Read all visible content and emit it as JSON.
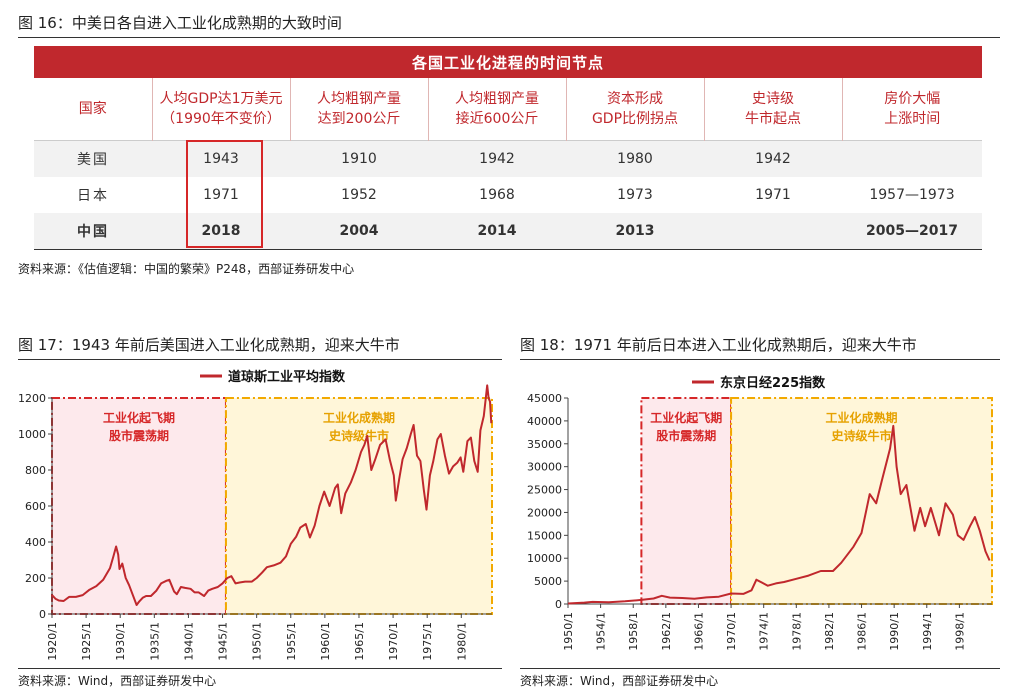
{
  "fig16": {
    "title": "图 16：中美日各自进入工业化成熟期的大致时间",
    "table_title": "各国工业化进程的时间节点",
    "headers": [
      "国家",
      "人均GDP达1万美元\n（1990年不变价）",
      "人均粗钢产量\n达到200公斤",
      "人均粗钢产量\n接近600公斤",
      "资本形成\nGDP比例拐点",
      "史诗级\n牛市起点",
      "房价大幅\n上涨时间"
    ],
    "rows": [
      [
        "美国",
        "1943",
        "1910",
        "1942",
        "1980",
        "1942",
        ""
      ],
      [
        "日本",
        "1971",
        "1952",
        "1968",
        "1973",
        "1971",
        "1957—1973"
      ],
      [
        "中国",
        "2018",
        "2004",
        "2014",
        "2013",
        "",
        "2005—2017"
      ]
    ],
    "source": "资料来源：《估值逻辑：中国的繁荣》P248，西部证券研发中心"
  },
  "fig17": {
    "title": "图 17：1943 年前后美国进入工业化成熟期，迎来大牛市",
    "source": "资料来源：Wind，西部证券研发中心"
  },
  "fig18": {
    "title": "图 18：1971 年前后日本进入工业化成熟期后，迎来大牛市",
    "source": "资料来源：Wind，西部证券研发中心"
  },
  "chart_data": [
    {
      "type": "line",
      "title": "道琼斯工业平均指数",
      "legend": "道琼斯工业平均指数",
      "xlabel": "",
      "ylabel": "",
      "xlim": [
        1920,
        1984.5
      ],
      "ylim": [
        0,
        1200
      ],
      "yticks": [
        0,
        200,
        400,
        600,
        800,
        1000,
        1200
      ],
      "xtick_labels": [
        "1920/1",
        "1925/1",
        "1930/1",
        "1935/1",
        "1940/1",
        "1945/1",
        "1950/1",
        "1955/1",
        "1960/1",
        "1965/1",
        "1970/1",
        "1975/1",
        "1980/1"
      ],
      "color": "#c0282d",
      "series": [
        {
          "name": "道琼斯工业平均指数",
          "x": [
            1920,
            1920.5,
            1921,
            1921.7,
            1922.5,
            1923.5,
            1924.5,
            1925.5,
            1926.5,
            1927.5,
            1928.5,
            1929.0,
            1929.4,
            1929.7,
            1929.9,
            1930.3,
            1930.8,
            1931.3,
            1931.8,
            1932.4,
            1932.8,
            1933.3,
            1933.8,
            1934.5,
            1935.3,
            1936.0,
            1936.8,
            1937.2,
            1937.9,
            1938.3,
            1938.9,
            1939.5,
            1940.3,
            1940.9,
            1941.5,
            1942.3,
            1942.9,
            1943.5,
            1944.3,
            1945.0,
            1945.7,
            1946.3,
            1946.9,
            1947.5,
            1948.3,
            1949.3,
            1950.0,
            1950.8,
            1951.5,
            1952.5,
            1953.5,
            1954.3,
            1955.0,
            1955.8,
            1956.4,
            1957.2,
            1957.8,
            1958.5,
            1959.2,
            1959.9,
            1960.7,
            1961.5,
            1961.9,
            1962.4,
            1963.0,
            1963.8,
            1964.5,
            1965.3,
            1965.8,
            1966.2,
            1966.8,
            1967.4,
            1968.1,
            1968.9,
            1969.5,
            1970.1,
            1970.4,
            1970.9,
            1971.4,
            1972.0,
            1972.6,
            1973.0,
            1973.5,
            1974.0,
            1974.5,
            1974.9,
            1975.4,
            1975.9,
            1976.5,
            1977.0,
            1977.6,
            1978.2,
            1978.8,
            1979.4,
            1979.9,
            1980.3,
            1980.9,
            1981.4,
            1981.9,
            1982.4,
            1982.8,
            1983.3,
            1983.8,
            1984.0,
            1984.2,
            1984.4
          ],
          "y": [
            105,
            85,
            75,
            72,
            95,
            95,
            105,
            135,
            155,
            190,
            255,
            320,
            375,
            330,
            250,
            280,
            200,
            160,
            110,
            50,
            70,
            90,
            100,
            100,
            130,
            170,
            185,
            190,
            125,
            110,
            150,
            145,
            140,
            120,
            120,
            100,
            130,
            140,
            150,
            170,
            200,
            210,
            170,
            175,
            180,
            180,
            200,
            230,
            260,
            270,
            285,
            320,
            390,
            430,
            480,
            500,
            425,
            490,
            600,
            680,
            600,
            700,
            720,
            560,
            670,
            730,
            800,
            900,
            940,
            990,
            800,
            860,
            940,
            970,
            860,
            770,
            630,
            750,
            860,
            920,
            1000,
            1050,
            880,
            850,
            690,
            580,
            770,
            850,
            970,
            1000,
            880,
            780,
            820,
            840,
            870,
            790,
            960,
            980,
            850,
            790,
            1020,
            1100,
            1270,
            1200,
            1180,
            1060
          ]
        }
      ],
      "regions": [
        {
          "label": "工业化起飞期\n股市震荡期",
          "x0": 1920,
          "x1": 1945.5,
          "fill": "#fde9ec",
          "border": "#d62728"
        },
        {
          "label": "工业化成熟期\n史诗级牛市",
          "x0": 1945.5,
          "x1": 1984.5,
          "fill": "#fff6d9",
          "border": "#f2a900"
        }
      ]
    },
    {
      "type": "line",
      "title": "东京日经225指数",
      "legend": "东京日经225指数",
      "xlabel": "",
      "ylabel": "",
      "xlim": [
        1950,
        2002
      ],
      "ylim": [
        0,
        45000
      ],
      "yticks": [
        0,
        5000,
        10000,
        15000,
        20000,
        25000,
        30000,
        35000,
        40000,
        45000
      ],
      "xtick_labels": [
        "1950/1",
        "1954/1",
        "1958/1",
        "1962/1",
        "1966/1",
        "1970/1",
        "1974/1",
        "1978/1",
        "1982/1",
        "1986/1",
        "1990/1",
        "1994/1",
        "1998/1"
      ],
      "color": "#c0282d",
      "series": [
        {
          "name": "东京日经225指数",
          "x": [
            1950,
            1952,
            1953,
            1955,
            1957,
            1959,
            1960.5,
            1961.5,
            1962.5,
            1964,
            1965.5,
            1967,
            1968.5,
            1970,
            1971.5,
            1972.5,
            1973.1,
            1974.5,
            1975.5,
            1976.5,
            1978,
            1979.5,
            1981,
            1982.5,
            1983.5,
            1985,
            1986,
            1987,
            1987.8,
            1988.5,
            1989.5,
            1989.9,
            1990.3,
            1990.8,
            1991.5,
            1992.5,
            1993.2,
            1993.8,
            1994.5,
            1995.5,
            1996.3,
            1997.2,
            1997.8,
            1998.5,
            1999.3,
            1999.9,
            2000.5,
            2001.2,
            2001.7
          ],
          "y": [
            100,
            300,
            450,
            400,
            600,
            900,
            1200,
            1800,
            1400,
            1300,
            1150,
            1450,
            1600,
            2300,
            2200,
            3000,
            5300,
            4000,
            4500,
            4800,
            5500,
            6200,
            7200,
            7200,
            9000,
            12500,
            15500,
            24000,
            22000,
            27000,
            34000,
            38900,
            30000,
            24000,
            26000,
            16000,
            21000,
            17000,
            21000,
            15000,
            22000,
            19500,
            15000,
            14000,
            17000,
            19000,
            16000,
            11500,
            9500
          ]
        }
      ],
      "regions": [
        {
          "label": "工业化起飞期\n股市震荡期",
          "x0": 1959,
          "x1": 1970,
          "fill": "#fde9ec",
          "border": "#d62728"
        },
        {
          "label": "工业化成熟期\n史诗级牛市",
          "x0": 1970,
          "x1": 2002,
          "fill": "#fff6d9",
          "border": "#f2a900"
        }
      ]
    }
  ]
}
